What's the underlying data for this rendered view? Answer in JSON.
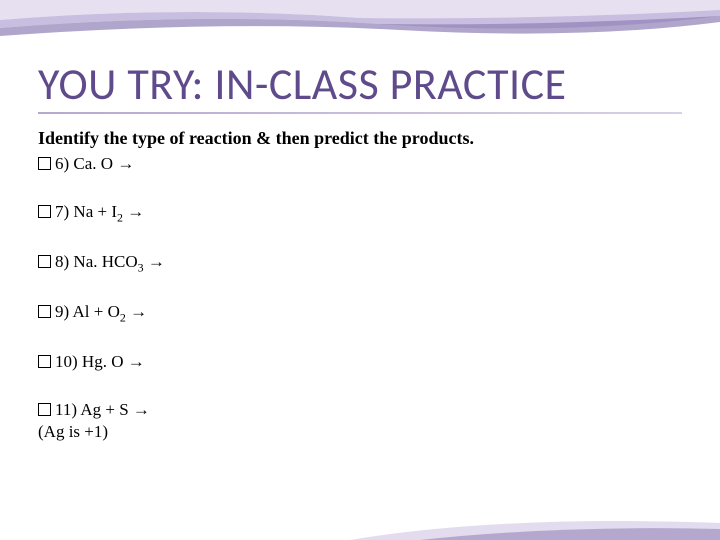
{
  "title": "YOU TRY: IN-CLASS PRACTICE",
  "instruction": "Identify the type of reaction & then predict the products.",
  "items": [
    {
      "num": "6)",
      "formula_html": "Ca. O &#8594;"
    },
    {
      "num": "7)",
      "formula_html": "Na + I<sub>2</sub> &#8594;"
    },
    {
      "num": "8)",
      "formula_html": "Na. HCO<sub>3</sub> &#8594;"
    },
    {
      "num": "9)",
      "formula_html": "Al + O<sub>2</sub> &#8594;"
    },
    {
      "num": "10)",
      "formula_html": "Hg. O &#8594;"
    },
    {
      "num": "11)",
      "formula_html": "Ag + S &#8594;",
      "note": "(Ag is +1)"
    }
  ],
  "colors": {
    "title": "#5f4b8b",
    "underline_start": "#b5a9cf",
    "underline_end": "#d8d0e6",
    "swoosh_top_light": "#e6e0f0",
    "swoosh_top_mid": "#c8bfe0",
    "swoosh_top_dark": "#8f7fb5",
    "swoosh_bottom_light": "#e3dcef",
    "swoosh_bottom_dark": "#9486b8"
  }
}
